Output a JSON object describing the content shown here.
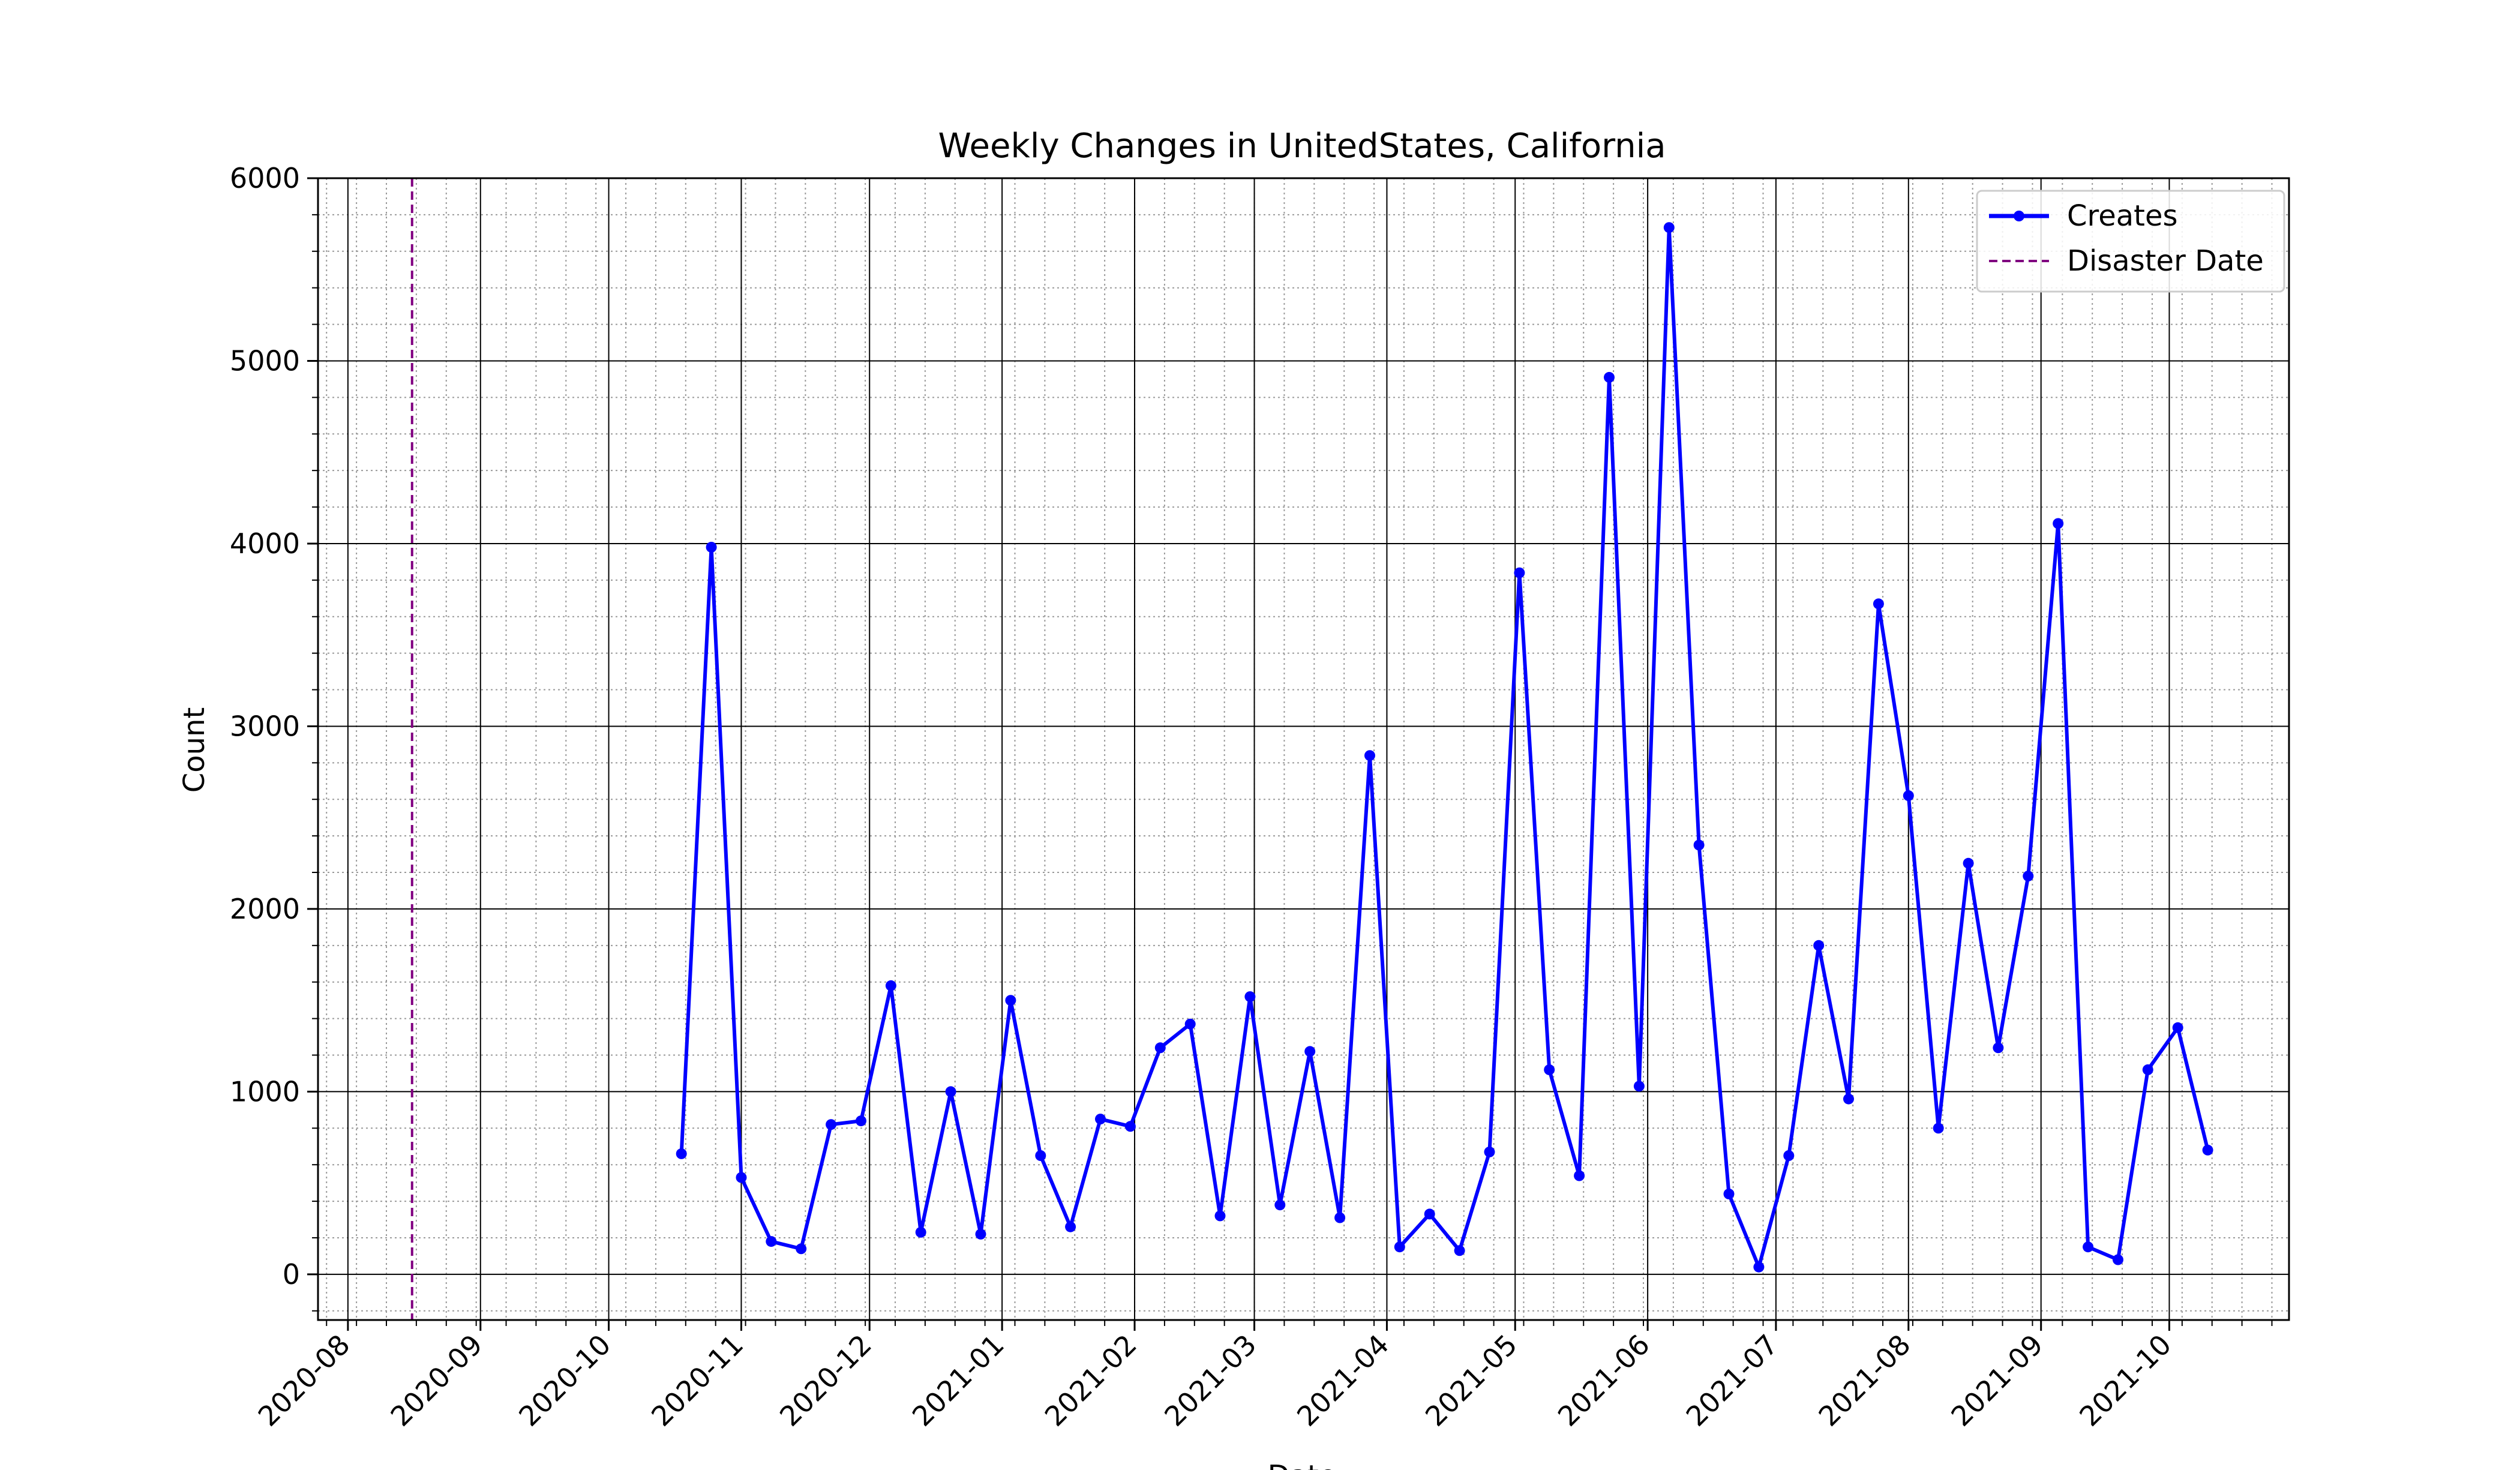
{
  "chart_data": {
    "type": "line",
    "title": "Weekly Changes in UnitedStates, California",
    "xlabel": "Date",
    "ylabel": "Count",
    "xlim": [
      "2020-07-25",
      "2021-10-29"
    ],
    "ylim": [
      -250,
      6000
    ],
    "yticks": [
      0,
      1000,
      2000,
      3000,
      4000,
      5000,
      6000
    ],
    "xticks": [
      "2020-08-01",
      "2020-09-01",
      "2020-10-01",
      "2020-11-01",
      "2020-12-01",
      "2021-01-01",
      "2021-02-01",
      "2021-03-01",
      "2021-04-01",
      "2021-05-01",
      "2021-06-01",
      "2021-07-01",
      "2021-08-01",
      "2021-09-01",
      "2021-10-01"
    ],
    "xtick_labels": [
      "2020-08",
      "2020-09",
      "2020-10",
      "2020-11",
      "2020-12",
      "2021-01",
      "2021-02",
      "2021-03",
      "2021-04",
      "2021-05",
      "2021-06",
      "2021-07",
      "2021-08",
      "2021-09",
      "2021-10"
    ],
    "grid": "on (major solid, minor dotted)",
    "legend_position": "upper right",
    "series": [
      {
        "name": "Creates",
        "color": "#0000ff",
        "marker": "circle",
        "x": [
          "2020-10-18",
          "2020-10-25",
          "2020-11-01",
          "2020-11-08",
          "2020-11-15",
          "2020-11-22",
          "2020-11-29",
          "2020-12-06",
          "2020-12-13",
          "2020-12-20",
          "2020-12-27",
          "2021-01-03",
          "2021-01-10",
          "2021-01-17",
          "2021-01-24",
          "2021-01-31",
          "2021-02-07",
          "2021-02-14",
          "2021-02-21",
          "2021-02-28",
          "2021-03-07",
          "2021-03-14",
          "2021-03-21",
          "2021-03-28",
          "2021-04-04",
          "2021-04-11",
          "2021-04-18",
          "2021-04-25",
          "2021-05-02",
          "2021-05-09",
          "2021-05-16",
          "2021-05-23",
          "2021-05-30",
          "2021-06-06",
          "2021-06-13",
          "2021-06-20",
          "2021-06-27",
          "2021-07-04",
          "2021-07-11",
          "2021-07-18",
          "2021-07-25",
          "2021-08-01",
          "2021-08-08",
          "2021-08-15",
          "2021-08-22",
          "2021-08-29",
          "2021-09-05",
          "2021-09-12",
          "2021-09-19",
          "2021-09-26",
          "2021-10-03",
          "2021-10-10"
        ],
        "values": [
          660,
          3980,
          530,
          180,
          140,
          820,
          840,
          1580,
          230,
          1000,
          220,
          1500,
          650,
          260,
          850,
          810,
          1240,
          1370,
          320,
          1520,
          380,
          1220,
          310,
          2840,
          150,
          330,
          130,
          670,
          3840,
          1120,
          540,
          4910,
          1030,
          5730,
          2350,
          440,
          40,
          650,
          1800,
          960,
          3670,
          2620,
          800,
          2250,
          1240,
          2180,
          4110,
          150,
          80,
          1120,
          1350,
          680
        ]
      },
      {
        "name": "Disaster Date",
        "color": "#800080",
        "style": "dashed vertical line",
        "x": "2020-08-16"
      }
    ]
  }
}
